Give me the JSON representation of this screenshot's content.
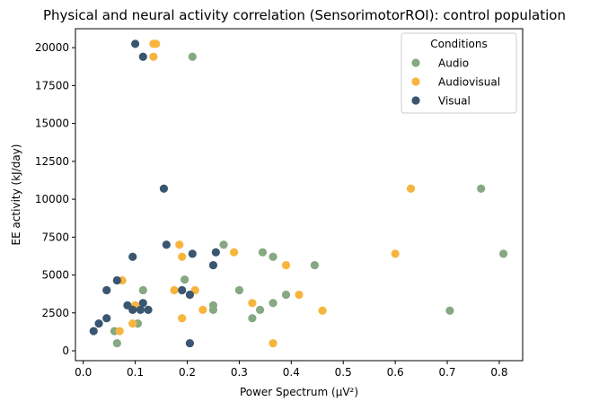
{
  "chart_data": {
    "type": "scatter",
    "title": "Physical and neural activity correlation (SensorimotorROI): control population",
    "xlabel": "Power Spectrum (µV²)",
    "ylabel": "EE activity (kJ/day)",
    "xlim": [
      -0.015,
      0.845
    ],
    "ylim": [
      -650,
      21250
    ],
    "xticks": [
      0.0,
      0.1,
      0.2,
      0.3,
      0.4,
      0.5,
      0.6,
      0.7,
      0.8
    ],
    "xtick_labels": [
      "0.0",
      "0.1",
      "0.2",
      "0.3",
      "0.4",
      "0.5",
      "0.6",
      "0.7",
      "0.8"
    ],
    "yticks": [
      0,
      2500,
      5000,
      7500,
      10000,
      12500,
      15000,
      17500,
      20000
    ],
    "ytick_labels": [
      "0",
      "2500",
      "5000",
      "7500",
      "10000",
      "12500",
      "15000",
      "17500",
      "20000"
    ],
    "grid": false,
    "legend": {
      "title": "Conditions",
      "position": "top-right"
    },
    "series": [
      {
        "name": "Audio",
        "color": "#86a882",
        "points": [
          [
            0.065,
            500
          ],
          [
            0.06,
            1300
          ],
          [
            0.105,
            1800
          ],
          [
            0.115,
            4000
          ],
          [
            0.195,
            4700
          ],
          [
            0.21,
            19400
          ],
          [
            0.25,
            2700
          ],
          [
            0.25,
            3000
          ],
          [
            0.27,
            7000
          ],
          [
            0.3,
            4000
          ],
          [
            0.325,
            2150
          ],
          [
            0.34,
            2700
          ],
          [
            0.345,
            6500
          ],
          [
            0.365,
            3150
          ],
          [
            0.365,
            6200
          ],
          [
            0.39,
            3700
          ],
          [
            0.445,
            5650
          ],
          [
            0.705,
            2650
          ],
          [
            0.765,
            10700
          ],
          [
            0.808,
            6400
          ]
        ]
      },
      {
        "name": "Audiovisual",
        "color": "#f7b53e",
        "points": [
          [
            0.07,
            1300
          ],
          [
            0.075,
            4650
          ],
          [
            0.095,
            1800
          ],
          [
            0.1,
            3000
          ],
          [
            0.135,
            19400
          ],
          [
            0.135,
            20250
          ],
          [
            0.14,
            20250
          ],
          [
            0.175,
            4000
          ],
          [
            0.185,
            7000
          ],
          [
            0.19,
            2150
          ],
          [
            0.19,
            6200
          ],
          [
            0.215,
            4000
          ],
          [
            0.23,
            2700
          ],
          [
            0.29,
            6500
          ],
          [
            0.325,
            3150
          ],
          [
            0.365,
            500
          ],
          [
            0.39,
            5650
          ],
          [
            0.415,
            3700
          ],
          [
            0.46,
            2650
          ],
          [
            0.6,
            6400
          ],
          [
            0.63,
            10700
          ]
        ]
      },
      {
        "name": "Visual",
        "color": "#3a5670",
        "points": [
          [
            0.02,
            1300
          ],
          [
            0.03,
            1800
          ],
          [
            0.045,
            2150
          ],
          [
            0.045,
            4000
          ],
          [
            0.065,
            4650
          ],
          [
            0.085,
            3000
          ],
          [
            0.095,
            2700
          ],
          [
            0.095,
            6200
          ],
          [
            0.1,
            20250
          ],
          [
            0.11,
            2700
          ],
          [
            0.115,
            3150
          ],
          [
            0.115,
            19400
          ],
          [
            0.125,
            2700
          ],
          [
            0.155,
            10700
          ],
          [
            0.16,
            7000
          ],
          [
            0.19,
            4000
          ],
          [
            0.205,
            500
          ],
          [
            0.205,
            3700
          ],
          [
            0.21,
            6400
          ],
          [
            0.25,
            5650
          ],
          [
            0.255,
            6500
          ]
        ]
      }
    ]
  }
}
